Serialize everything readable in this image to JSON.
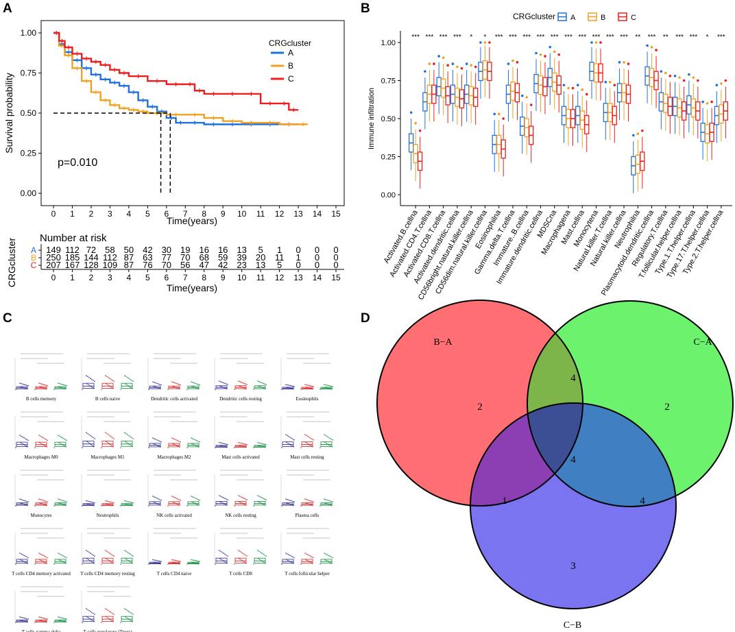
{
  "panel_labels": {
    "a": "A",
    "b": "B",
    "c": "C",
    "d": "D"
  },
  "colors": {
    "A": "#1e6fe0",
    "B": "#f2a020",
    "C": "#ee1c1c",
    "red_venn": "#ff6f73",
    "green_venn": "#6cf26c",
    "blue_venn": "#7b74f0",
    "rg": "#7db54a",
    "rb": "#8b3fb3",
    "gb": "#3f7fc2",
    "all": "#3c4f94"
  },
  "chart_data": [
    {
      "type": "line",
      "panel": "A",
      "title": "",
      "xlabel": "Time(years)",
      "ylabel": "Survival probability",
      "xlim": [
        0,
        15
      ],
      "ylim": [
        0,
        1
      ],
      "x_ticks": [
        "0",
        "1",
        "2",
        "3",
        "4",
        "5",
        "6",
        "7",
        "8",
        "9",
        "10",
        "11",
        "12",
        "13",
        "14",
        "15"
      ],
      "y_ticks": [
        "0.00",
        "0.25",
        "0.50",
        "0.75",
        "1.00"
      ],
      "legend_title": "CRGcluster",
      "legend": [
        "A",
        "B",
        "C"
      ],
      "pvalue": "p=0.010",
      "median_line_y": 0.5,
      "median_times": [
        5.7,
        6.2
      ],
      "series": [
        {
          "name": "A",
          "x": [
            0,
            0.3,
            0.6,
            1,
            1.5,
            2,
            2.5,
            3,
            3.5,
            4,
            4.5,
            5,
            5.5,
            6,
            6.5,
            7,
            8,
            9,
            10,
            11,
            12,
            13
          ],
          "y": [
            1,
            0.93,
            0.88,
            0.83,
            0.78,
            0.74,
            0.71,
            0.69,
            0.67,
            0.63,
            0.58,
            0.54,
            0.51,
            0.47,
            0.44,
            0.44,
            0.43,
            0.43,
            0.43,
            0.43,
            0.43,
            0.43
          ]
        },
        {
          "name": "B",
          "x": [
            0,
            0.3,
            0.6,
            1,
            1.5,
            2,
            2.5,
            3,
            3.5,
            4,
            4.5,
            5,
            6,
            7,
            8,
            9,
            10,
            11,
            12,
            13,
            13.5
          ],
          "y": [
            1,
            0.92,
            0.86,
            0.78,
            0.7,
            0.63,
            0.58,
            0.55,
            0.53,
            0.52,
            0.51,
            0.5,
            0.49,
            0.49,
            0.47,
            0.45,
            0.44,
            0.44,
            0.43,
            0.43,
            0.43
          ]
        },
        {
          "name": "C",
          "x": [
            0,
            0.3,
            0.6,
            1,
            1.5,
            2,
            2.5,
            3,
            3.5,
            4,
            5,
            6,
            7,
            7.5,
            8,
            9,
            10,
            11,
            12,
            12.5,
            13
          ],
          "y": [
            1,
            0.95,
            0.91,
            0.87,
            0.84,
            0.82,
            0.8,
            0.77,
            0.75,
            0.73,
            0.7,
            0.68,
            0.68,
            0.64,
            0.62,
            0.62,
            0.62,
            0.56,
            0.56,
            0.52,
            0.52
          ]
        }
      ],
      "risk_table": {
        "title": "Number at risk",
        "strata_label": "CRGcluster",
        "xlabel": "Time(years)",
        "rows": [
          {
            "name": "A",
            "counts": [
              "149",
              "112",
              "72",
              "58",
              "50",
              "42",
              "30",
              "19",
              "16",
              "16",
              "13",
              "5",
              "1",
              "0",
              "0",
              "0"
            ]
          },
          {
            "name": "B",
            "counts": [
              "250",
              "185",
              "144",
              "112",
              "87",
              "63",
              "77",
              "70",
              "68",
              "59",
              "39",
              "20",
              "11",
              "1",
              "0",
              "0"
            ]
          },
          {
            "name": "C",
            "counts": [
              "207",
              "167",
              "128",
              "109",
              "87",
              "76",
              "70",
              "56",
              "47",
              "42",
              "23",
              "13",
              "5",
              "0",
              "0",
              "0"
            ]
          }
        ]
      }
    },
    {
      "type": "box",
      "panel": "B",
      "ylabel": "Immune infiltration",
      "ylim": [
        0,
        1
      ],
      "y_ticks": [
        "0.00",
        "0.25",
        "0.50",
        "0.75",
        "1.00"
      ],
      "legend_title": "CRGcluster",
      "legend": [
        "A",
        "B",
        "C"
      ],
      "categories": [
        "Activated.B.cellna",
        "Activated.CD4.T.cellna",
        "Activated.CD8.T.cellna",
        "Activated.dendritic.cellna",
        "CD56bright.natural.killer.cellna",
        "CD56dim.natural.killer.cellna",
        "Eosinophilna",
        "Gamma.delta.T.cellna",
        "Immature..B.cellna",
        "Immature.dendritic.cellna",
        "MDSCna",
        "Macrophagena",
        "Mast.cellna",
        "Monocytena",
        "Natural.killer.T.cellna",
        "Natural.killer.cellna",
        "Neutrophilna",
        "Plasmacytoid.dendritic.cellna",
        "Regulatory.T.cellna",
        "T.follicular.helper.cellna",
        "Type.1.T.helper.cellna",
        "Type.17.T.helper.cellna",
        "Type.2.T.helper.cellna"
      ],
      "significance": [
        "***",
        "***",
        "***",
        "***",
        "*",
        "*",
        "***",
        "***",
        "***",
        "***",
        "***",
        "***",
        "***",
        "***",
        "***",
        "***",
        "**",
        "***",
        "**",
        "***",
        "***",
        "*",
        "***"
      ],
      "medians": {
        "A": [
          0.34,
          0.61,
          0.71,
          0.66,
          0.66,
          0.81,
          0.33,
          0.66,
          0.45,
          0.73,
          0.77,
          0.52,
          0.52,
          0.81,
          0.54,
          0.67,
          0.19,
          0.78,
          0.61,
          0.58,
          0.59,
          0.41,
          0.52
        ],
        "B": [
          0.27,
          0.66,
          0.7,
          0.64,
          0.65,
          0.82,
          0.33,
          0.68,
          0.44,
          0.72,
          0.74,
          0.5,
          0.49,
          0.8,
          0.54,
          0.67,
          0.2,
          0.77,
          0.6,
          0.57,
          0.57,
          0.4,
          0.53
        ],
        "C": [
          0.22,
          0.66,
          0.65,
          0.63,
          0.64,
          0.81,
          0.3,
          0.67,
          0.39,
          0.71,
          0.72,
          0.5,
          0.46,
          0.8,
          0.52,
          0.66,
          0.22,
          0.75,
          0.58,
          0.55,
          0.55,
          0.41,
          0.55
        ]
      }
    },
    {
      "type": "box",
      "panel": "C",
      "panels": [
        "B cells memory",
        "B cells naive",
        "Dendritic cells activated",
        "Dendritic cells resting",
        "Eosinophils",
        "Macrophages M0",
        "Macrophages M1",
        "Macrophages M2",
        "Mast cells activated",
        "Mast cells resting",
        "Monocytes",
        "Neutrophils",
        "NK cells activated",
        "NK cells resting",
        "Plasma cells",
        "T cells CD4 memory activated",
        "T cells CD4 memory resting",
        "T cells CD4 naive",
        "T cells CD8",
        "T cells follicular helper",
        "T cells gamma delta",
        "T cells regulatory (Tregs)"
      ],
      "levels": [
        0.08,
        0.3,
        0.12,
        0.14,
        0.04,
        0.26,
        0.34,
        0.18,
        0.05,
        0.28,
        0.1,
        0.05,
        0.18,
        0.2,
        0.1,
        0.22,
        0.3,
        0.03,
        0.3,
        0.22,
        0.06,
        0.3
      ]
    }
  ],
  "venn": {
    "sets": [
      "B−A",
      "C−A",
      "C−B"
    ],
    "regions": {
      "b_only": "2",
      "c_a_only": "2",
      "c_b_only": "3",
      "ba_ca": "4",
      "ba_cb": "1",
      "ca_cb": "4",
      "all": "4"
    }
  }
}
